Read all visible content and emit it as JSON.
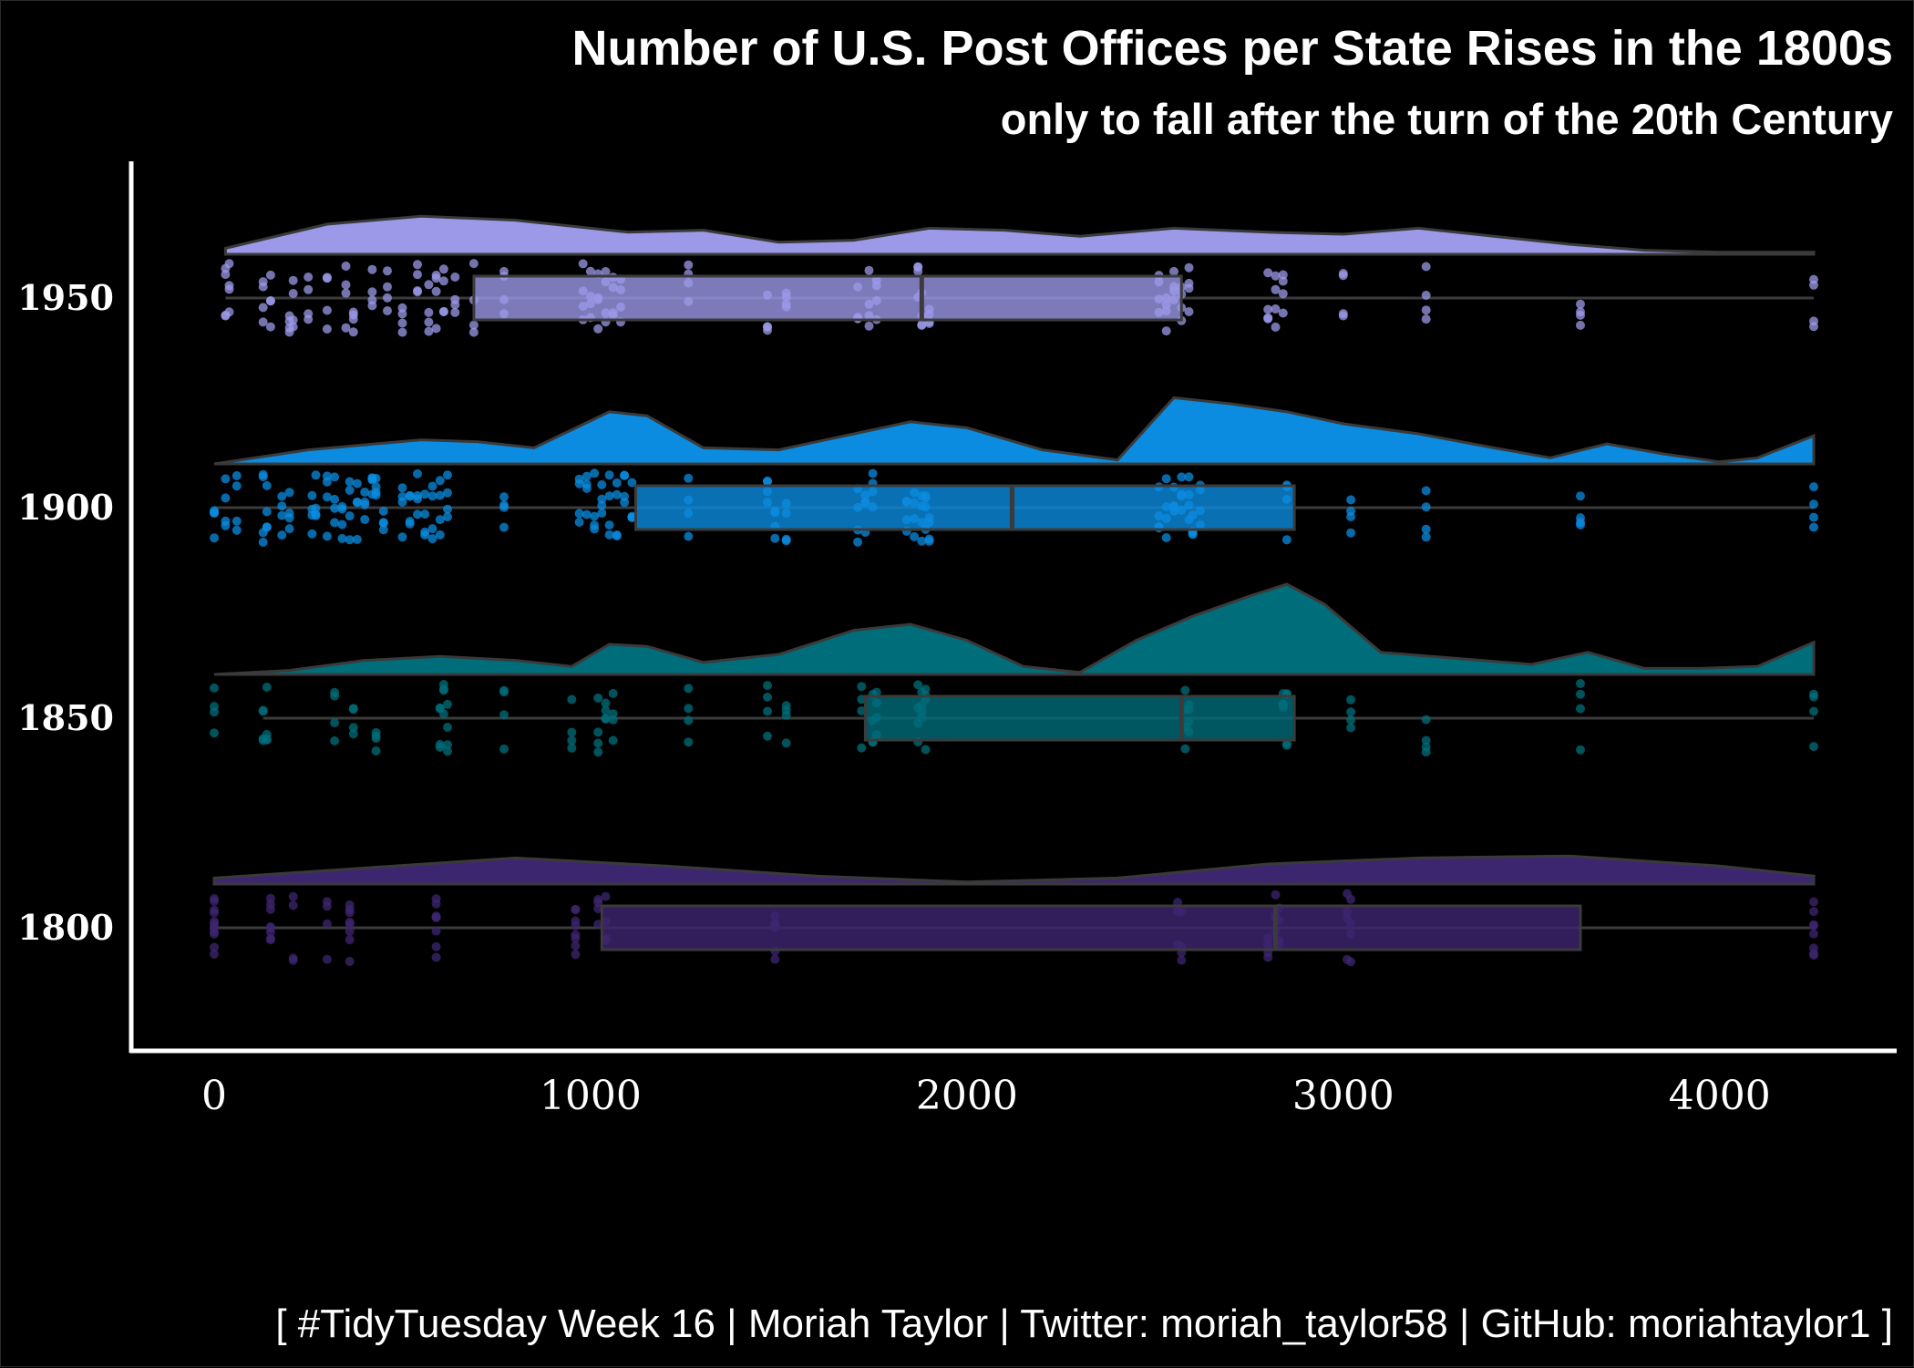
{
  "chart_data": {
    "type": "raincloud",
    "title": "Number of U.S. Post Offices per State Rises in the 1800s",
    "subtitle": "only to fall after the turn of the 20th Century",
    "xlabel": "",
    "ylabel": "",
    "xlim": [
      -200,
      4450
    ],
    "x_ticks": [
      0,
      1000,
      2000,
      3000,
      4000
    ],
    "x_tick_labels": [
      "0",
      "1000",
      "2000",
      "3000",
      "4000"
    ],
    "grid": false,
    "legend": "none",
    "caption": "[ #TidyTuesday Week 16 | Moriah Taylor | Twitter: moriah_taylor58 | GitHub: moriahtaylor1 ]",
    "series": [
      {
        "category": "1800",
        "color": "#3D2670",
        "box": {
          "min": 0,
          "q1": 1030,
          "median": 2820,
          "q3": 3630,
          "max": 4250
        },
        "density": {
          "range": [
            0,
            4250
          ],
          "points": [
            [
              0,
              0.06
            ],
            [
              400,
              0.16
            ],
            [
              800,
              0.26
            ],
            [
              1200,
              0.18
            ],
            [
              1600,
              0.08
            ],
            [
              2000,
              0.02
            ],
            [
              2400,
              0.06
            ],
            [
              2800,
              0.2
            ],
            [
              3200,
              0.26
            ],
            [
              3600,
              0.28
            ],
            [
              4000,
              0.18
            ],
            [
              4250,
              0.08
            ]
          ]
        },
        "points": [
          0,
          0,
          0,
          150,
          150,
          210,
          300,
          360,
          360,
          590,
          590,
          960,
          960,
          1020,
          1040,
          1490,
          1490,
          2560,
          2570,
          2800,
          2820,
          2830,
          3010,
          3020,
          4250,
          4250
        ]
      },
      {
        "category": "1850",
        "color": "#006D7A",
        "box": {
          "min": 130,
          "q1": 1730,
          "median": 2570,
          "q3": 2870,
          "max": 4250
        },
        "density": {
          "range": [
            0,
            4250
          ],
          "points": [
            [
              0,
              0
            ],
            [
              200,
              0.04
            ],
            [
              400,
              0.14
            ],
            [
              600,
              0.18
            ],
            [
              800,
              0.14
            ],
            [
              950,
              0.08
            ],
            [
              1050,
              0.3
            ],
            [
              1150,
              0.28
            ],
            [
              1300,
              0.12
            ],
            [
              1500,
              0.2
            ],
            [
              1700,
              0.44
            ],
            [
              1850,
              0.5
            ],
            [
              2000,
              0.34
            ],
            [
              2150,
              0.08
            ],
            [
              2300,
              0.02
            ],
            [
              2450,
              0.34
            ],
            [
              2600,
              0.58
            ],
            [
              2750,
              0.78
            ],
            [
              2850,
              0.9
            ],
            [
              2950,
              0.7
            ],
            [
              3100,
              0.22
            ],
            [
              3300,
              0.16
            ],
            [
              3500,
              0.1
            ],
            [
              3650,
              0.22
            ],
            [
              3800,
              0.06
            ],
            [
              3950,
              0.06
            ],
            [
              4100,
              0.08
            ],
            [
              4250,
              0.32
            ]
          ]
        },
        "points": [
          0,
          130,
          140,
          320,
          370,
          430,
          600,
          610,
          620,
          770,
          950,
          1020,
          1040,
          1060,
          1260,
          1470,
          1520,
          1720,
          1750,
          1760,
          1870,
          1880,
          1890,
          2580,
          2590,
          2840,
          2850,
          3020,
          3220,
          3630,
          4250
        ]
      },
      {
        "category": "1900",
        "color": "#0B8CE0",
        "box": {
          "min": 0,
          "q1": 1120,
          "median": 2120,
          "q3": 2870,
          "max": 4250
        },
        "density": {
          "range": [
            0,
            4250
          ],
          "points": [
            [
              0,
              0
            ],
            [
              250,
              0.14
            ],
            [
              550,
              0.24
            ],
            [
              700,
              0.22
            ],
            [
              850,
              0.16
            ],
            [
              1050,
              0.52
            ],
            [
              1150,
              0.48
            ],
            [
              1300,
              0.16
            ],
            [
              1500,
              0.14
            ],
            [
              1700,
              0.3
            ],
            [
              1850,
              0.42
            ],
            [
              2000,
              0.36
            ],
            [
              2200,
              0.14
            ],
            [
              2400,
              0.04
            ],
            [
              2550,
              0.66
            ],
            [
              2700,
              0.6
            ],
            [
              2850,
              0.52
            ],
            [
              3000,
              0.4
            ],
            [
              3200,
              0.3
            ],
            [
              3400,
              0.16
            ],
            [
              3550,
              0.06
            ],
            [
              3700,
              0.2
            ],
            [
              3850,
              0.1
            ],
            [
              4000,
              0.02
            ],
            [
              4100,
              0.06
            ],
            [
              4250,
              0.28
            ]
          ]
        },
        "points": [
          0,
          30,
          60,
          130,
          140,
          180,
          200,
          260,
          270,
          300,
          320,
          340,
          360,
          380,
          400,
          420,
          430,
          450,
          500,
          520,
          540,
          560,
          580,
          600,
          620,
          770,
          970,
          990,
          1010,
          1030,
          1050,
          1070,
          1090,
          1110,
          1260,
          1470,
          1490,
          1520,
          1710,
          1730,
          1750,
          1840,
          1860,
          1880,
          1890,
          1900,
          2510,
          2530,
          2550,
          2570,
          2590,
          2600,
          2620,
          2850,
          3020,
          3220,
          3630,
          4250
        ]
      },
      {
        "category": "1950",
        "color": "#9C99E8",
        "box": {
          "min": 30,
          "q1": 690,
          "median": 1880,
          "q3": 2570,
          "max": 4250
        },
        "density": {
          "range": [
            30,
            4250
          ],
          "points": [
            [
              30,
              0.06
            ],
            [
              300,
              0.3
            ],
            [
              550,
              0.38
            ],
            [
              800,
              0.34
            ],
            [
              1100,
              0.22
            ],
            [
              1300,
              0.24
            ],
            [
              1500,
              0.12
            ],
            [
              1700,
              0.14
            ],
            [
              1900,
              0.26
            ],
            [
              2100,
              0.24
            ],
            [
              2300,
              0.18
            ],
            [
              2550,
              0.26
            ],
            [
              2800,
              0.22
            ],
            [
              3000,
              0.2
            ],
            [
              3200,
              0.26
            ],
            [
              3400,
              0.18
            ],
            [
              3600,
              0.1
            ],
            [
              3800,
              0.04
            ],
            [
              4000,
              0.02
            ],
            [
              4250,
              0.02
            ]
          ]
        },
        "points": [
          30,
          40,
          130,
          150,
          200,
          210,
          250,
          300,
          350,
          370,
          420,
          460,
          500,
          540,
          570,
          590,
          610,
          640,
          690,
          770,
          980,
          1000,
          1020,
          1040,
          1060,
          1080,
          1260,
          1470,
          1520,
          1710,
          1740,
          1760,
          1870,
          1880,
          1900,
          2510,
          2530,
          2550,
          2570,
          2590,
          2800,
          2820,
          2840,
          3000,
          3220,
          3630,
          4250
        ]
      }
    ]
  }
}
